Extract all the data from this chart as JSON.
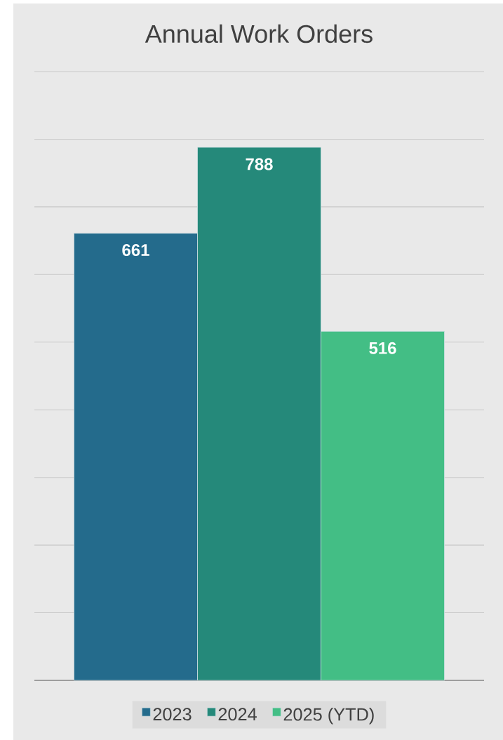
{
  "chart_data": {
    "type": "bar",
    "title": "Annual Work Orders",
    "categories": [
      null
    ],
    "series": [
      {
        "name": "2023",
        "color": "#246b8c",
        "values": [
          661
        ]
      },
      {
        "name": "2024",
        "color": "#25897a",
        "values": [
          788
        ]
      },
      {
        "name": "2025 (YTD)",
        "color": "#43be85",
        "values": [
          516
        ]
      }
    ],
    "ylim": [
      0,
      900
    ],
    "yticks": [
      {
        "value": 0,
        "label": null
      },
      {
        "value": 100,
        "label": null
      },
      {
        "value": 200,
        "label": null
      },
      {
        "value": 300,
        "label": null
      },
      {
        "value": 400,
        "label": null
      },
      {
        "value": 500,
        "label": null
      },
      {
        "value": 600,
        "label": null
      },
      {
        "value": 700,
        "label": null
      },
      {
        "value": 800,
        "label": null
      },
      {
        "value": 900,
        "label": null
      }
    ],
    "grid": "y",
    "data_labels": true,
    "legend": "bottom"
  }
}
